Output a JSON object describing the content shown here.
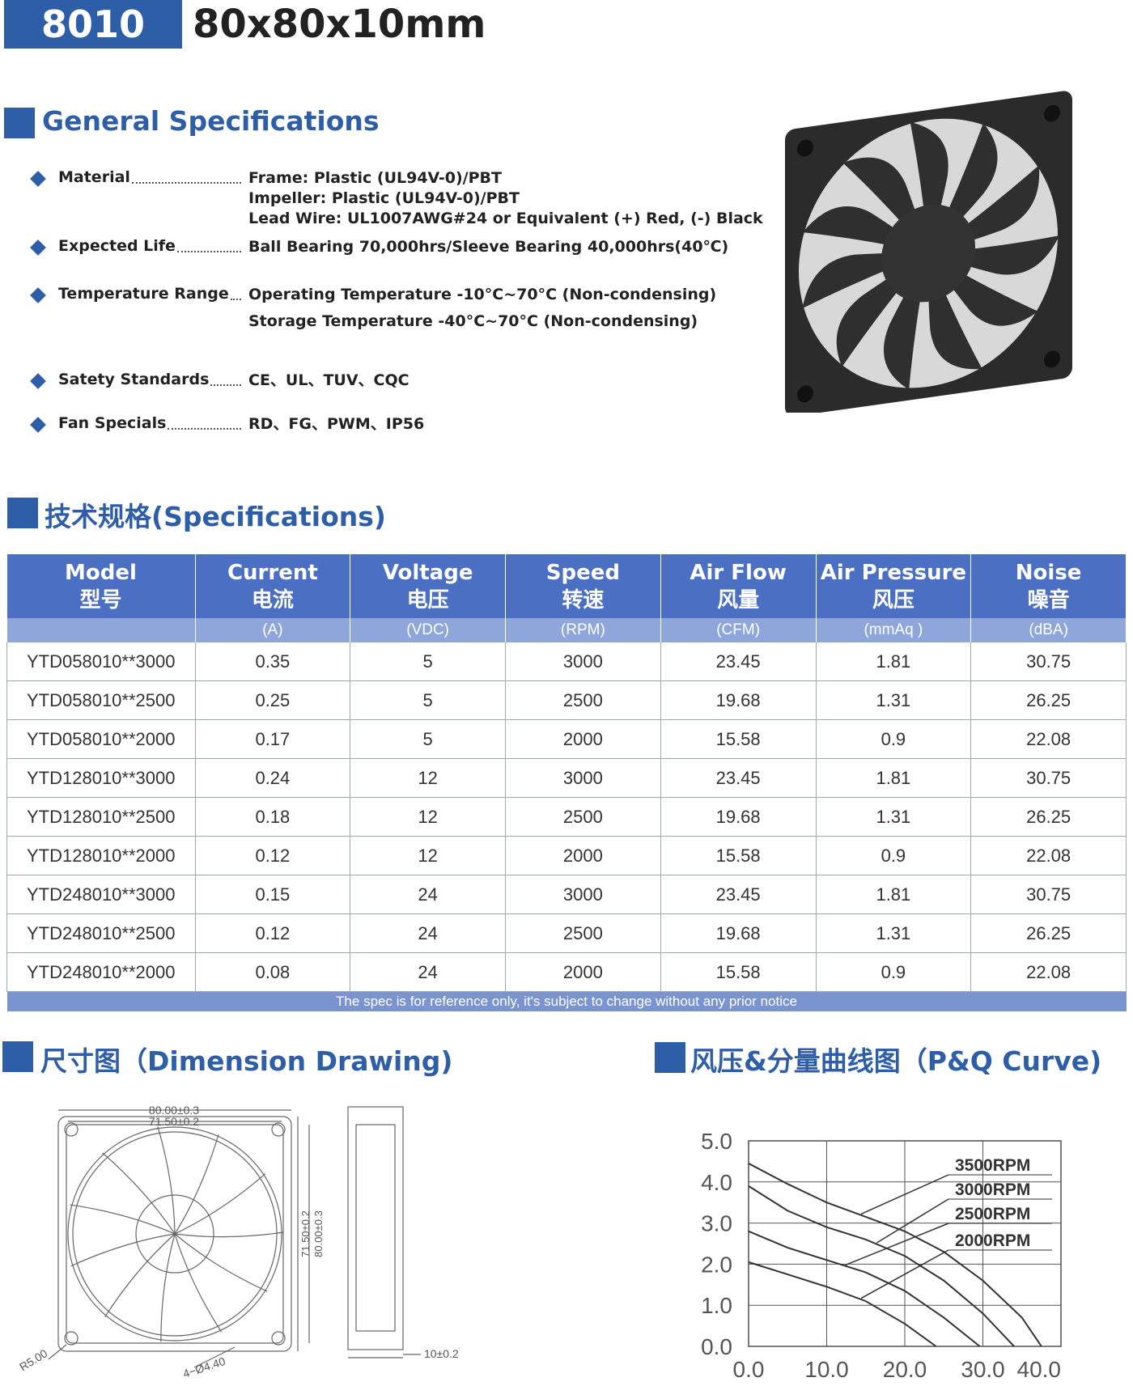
{
  "header": {
    "model": "8010",
    "size": "80x80x10mm"
  },
  "general": {
    "title": "General Specifications",
    "items": [
      {
        "label": "Material",
        "values": [
          "Frame: Plastic (UL94V-0)/PBT",
          "Impeller: Plastic (UL94V-0)/PBT",
          "Lead Wire: UL1007AWG#24 or Equivalent (+) Red, (-) Black"
        ]
      },
      {
        "label": "Expected Life",
        "values": [
          "Ball Bearing 70,000hrs/Sleeve Bearing 40,000hrs(40℃)"
        ]
      },
      {
        "label": "Temperature Range",
        "values": [
          "Operating Temperature -10°C~70°C (Non-condensing)",
          "Storage Temperature -40°C~70°C (Non-condensing)"
        ]
      },
      {
        "label": "Satety Standards",
        "values": [
          "CE、UL、TUV、CQC"
        ]
      },
      {
        "label": "Fan Specials",
        "values": [
          "RD、FG、PWM、IP56"
        ]
      }
    ]
  },
  "specs": {
    "title": "技术规格(Specifications)",
    "columns": [
      {
        "en": "Model",
        "zh": "型号"
      },
      {
        "en": "Current",
        "zh": "电流"
      },
      {
        "en": "Voltage",
        "zh": "电压"
      },
      {
        "en": "Speed",
        "zh": "转速"
      },
      {
        "en": "Air Flow",
        "zh": "风量"
      },
      {
        "en": "Air Pressure",
        "zh": "风压"
      },
      {
        "en": "Noise",
        "zh": "噪音"
      }
    ],
    "units": [
      "(A)",
      "(VDC)",
      "(RPM)",
      "(CFM)",
      "(mmAq )",
      "(dBA)"
    ],
    "rows": [
      [
        "YTD058010**3000",
        0.35,
        5,
        3000,
        23.45,
        1.81,
        30.75
      ],
      [
        "YTD058010**2500",
        0.25,
        5,
        2500,
        19.68,
        1.31,
        26.25
      ],
      [
        "YTD058010**2000",
        0.17,
        5,
        2000,
        15.58,
        0.9,
        22.08
      ],
      [
        "YTD128010**3000",
        0.24,
        12,
        3000,
        23.45,
        1.81,
        30.75
      ],
      [
        "YTD128010**2500",
        0.18,
        12,
        2500,
        19.68,
        1.31,
        26.25
      ],
      [
        "YTD128010**2000",
        0.12,
        12,
        2000,
        15.58,
        0.9,
        22.08
      ],
      [
        "YTD248010**3000",
        0.15,
        24,
        3000,
        23.45,
        1.81,
        30.75
      ],
      [
        "YTD248010**2500",
        0.12,
        24,
        2500,
        19.68,
        1.31,
        26.25
      ],
      [
        "YTD248010**2000",
        0.08,
        24,
        2000,
        15.58,
        0.9,
        22.08
      ]
    ],
    "note": "The spec is for reference only, it's subject to change without any prior notice"
  },
  "dimension": {
    "title": "尺寸图（Dimension Drawing)",
    "labels": {
      "outer_width": "80.00±0.3",
      "inner_width": "71.50±0.2",
      "inner_height": "71.50±0.2",
      "outer_height": "80.00±0.3",
      "radius": "R5.00",
      "holes": "4−Ø4.40",
      "thickness": "10±0.2"
    }
  },
  "pq": {
    "title": "风压&分量曲线图（P&Q Curve)",
    "chart": {
      "type": "line",
      "xlim": [
        0,
        40
      ],
      "ylim": [
        0,
        5
      ],
      "xticks": [
        {
          "value": 0,
          "label": "0.0"
        },
        {
          "value": 10,
          "label": "10.0"
        },
        {
          "value": 20,
          "label": "20.0"
        },
        {
          "value": 30,
          "label": "30.0"
        },
        {
          "value": 40,
          "label": "40.0"
        }
      ],
      "yticks": [
        {
          "value": 0,
          "label": "0.0"
        },
        {
          "value": 1,
          "label": "1.0"
        },
        {
          "value": 2,
          "label": "2.0"
        },
        {
          "value": 3,
          "label": "3.0"
        },
        {
          "value": 4,
          "label": "4.0"
        },
        {
          "value": 5,
          "label": "5.0"
        }
      ],
      "grid": true,
      "series": [
        {
          "name": "3500RPM",
          "color": "#333333",
          "x": [
            0,
            5,
            10,
            15,
            20,
            25,
            30,
            35,
            37.5
          ],
          "values": [
            4.45,
            3.95,
            3.5,
            3.15,
            2.8,
            2.3,
            1.6,
            0.7,
            0
          ]
        },
        {
          "name": "3000RPM",
          "color": "#333333",
          "x": [
            0,
            5,
            10,
            15,
            20,
            25,
            30,
            34
          ],
          "values": [
            3.9,
            3.3,
            2.9,
            2.6,
            2.2,
            1.6,
            0.8,
            0
          ]
        },
        {
          "name": "2500RPM",
          "color": "#333333",
          "x": [
            0,
            5,
            10,
            15,
            20,
            25,
            29.6
          ],
          "values": [
            2.8,
            2.4,
            2.1,
            1.8,
            1.35,
            0.7,
            0
          ]
        },
        {
          "name": "2000RPM",
          "color": "#333333",
          "x": [
            0,
            5,
            10,
            15,
            20,
            24
          ],
          "values": [
            2.05,
            1.75,
            1.45,
            1.1,
            0.55,
            0
          ]
        }
      ]
    }
  }
}
